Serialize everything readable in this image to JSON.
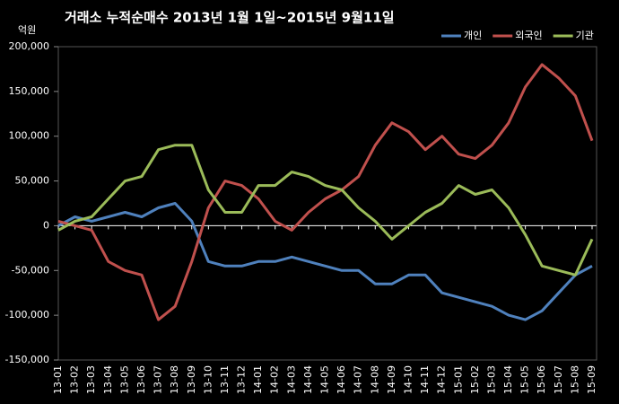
{
  "chart_data": {
    "type": "line",
    "title": "거래소  누적순매수 2013년 1월 1일~2015년 9월11일",
    "y_label": "억원",
    "categories": [
      "13-01",
      "13-02",
      "13-03",
      "13-04",
      "13-05",
      "13-06",
      "13-07",
      "13-08",
      "13-09",
      "13-10",
      "13-11",
      "13-12",
      "14-01",
      "14-02",
      "14-03",
      "14-04",
      "14-05",
      "14-06",
      "14-07",
      "14-08",
      "14-09",
      "14-10",
      "14-11",
      "14-12",
      "15-01",
      "15-02",
      "15-03",
      "15-04",
      "15-05",
      "15-06",
      "15-07",
      "15-08",
      "15-09"
    ],
    "series": [
      {
        "name": "개인",
        "color": "#4f81bd",
        "values": [
          0,
          10000,
          5000,
          10000,
          15000,
          10000,
          20000,
          25000,
          5000,
          -40000,
          -45000,
          -45000,
          -40000,
          -40000,
          -35000,
          -40000,
          -45000,
          -50000,
          -50000,
          -65000,
          -65000,
          -55000,
          -55000,
          -75000,
          -80000,
          -85000,
          -90000,
          -100000,
          -105000,
          -95000,
          -75000,
          -55000,
          -45000
        ]
      },
      {
        "name": "외국인",
        "color": "#c0504d",
        "values": [
          5000,
          0,
          -5000,
          -40000,
          -50000,
          -55000,
          -105000,
          -90000,
          -40000,
          20000,
          50000,
          45000,
          30000,
          5000,
          -5000,
          15000,
          30000,
          40000,
          55000,
          90000,
          115000,
          105000,
          85000,
          100000,
          80000,
          75000,
          90000,
          115000,
          155000,
          180000,
          165000,
          145000,
          95000
        ]
      },
      {
        "name": "기관",
        "color": "#9bbb59",
        "values": [
          -5000,
          5000,
          10000,
          30000,
          50000,
          55000,
          85000,
          90000,
          90000,
          40000,
          15000,
          15000,
          45000,
          45000,
          60000,
          55000,
          45000,
          40000,
          20000,
          5000,
          -15000,
          0,
          15000,
          25000,
          45000,
          35000,
          40000,
          20000,
          -10000,
          -45000,
          -50000,
          -55000,
          -15000
        ]
      }
    ],
    "ylim": [
      -150000,
      200000
    ],
    "yticks": [
      {
        "value": -150000,
        "label": "-150,000"
      },
      {
        "value": -100000,
        "label": "-100,000"
      },
      {
        "value": -50000,
        "label": "-50,000"
      },
      0,
      {
        "value": 50000,
        "label": "50,000"
      },
      {
        "value": 100000,
        "label": "100,000"
      },
      {
        "value": 150000,
        "label": "150,000"
      },
      {
        "value": 200000,
        "label": "200,000"
      }
    ],
    "grid": false,
    "legend_position": "top-right"
  }
}
